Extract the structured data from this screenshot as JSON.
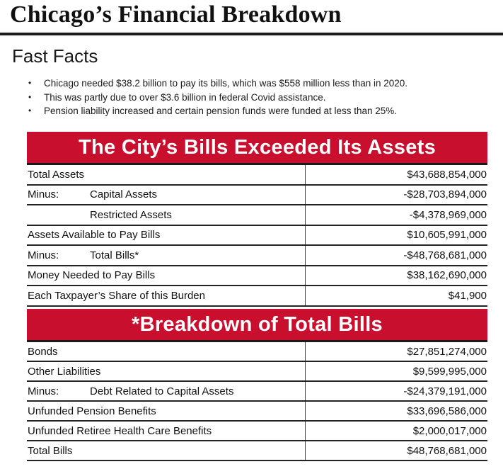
{
  "title": "Chicago’s Financial Breakdown",
  "subtitle": "Fast Facts",
  "facts": [
    "Chicago needed $38.2 billion to pay its bills, which was $558 million less than in 2020.",
    "This was partly due to over $3.6 billion in federal Covid  assistance.",
    "Pension liability increased and certain pension funds were funded at less than 25%."
  ],
  "bullet": "•",
  "minus_label": "Minus:",
  "section1": {
    "banner": "The City’s Bills Exceeded Its Assets",
    "rows": [
      {
        "label": "Total Assets",
        "value": "$43,688,854,000"
      },
      {
        "label": "Capital Assets",
        "value": "-$28,703,894,000"
      },
      {
        "label": "Restricted Assets",
        "value": "-$4,378,969,000"
      },
      {
        "label": "Assets Available to Pay Bills",
        "value": "$10,605,991,000"
      },
      {
        "label": "Total Bills*",
        "value": "-$48,768,681,000"
      },
      {
        "label": "Money Needed to Pay Bills",
        "value": "$38,162,690,000"
      },
      {
        "label": "Each Taxpayer’s Share of this Burden",
        "value": "$41,900"
      }
    ]
  },
  "section2": {
    "banner": "*Breakdown of Total Bills",
    "rows": [
      {
        "label": "Bonds",
        "value": "$27,851,274,000"
      },
      {
        "label": "Other Liabilities",
        "value": "$9,599,995,000"
      },
      {
        "label": "Debt Related to Capital Assets",
        "value": "-$24,379,191,000"
      },
      {
        "label": "Unfunded Pension Benefits",
        "value": "$33,696,586,000"
      },
      {
        "label": "Unfunded Retiree Health Care Benefits",
        "value": "$2,000,017,000"
      },
      {
        "label": "Total Bills",
        "value": "$48,768,681,000"
      }
    ]
  },
  "colors": {
    "banner": "#c8102e",
    "rule": "#1a1a1a"
  }
}
